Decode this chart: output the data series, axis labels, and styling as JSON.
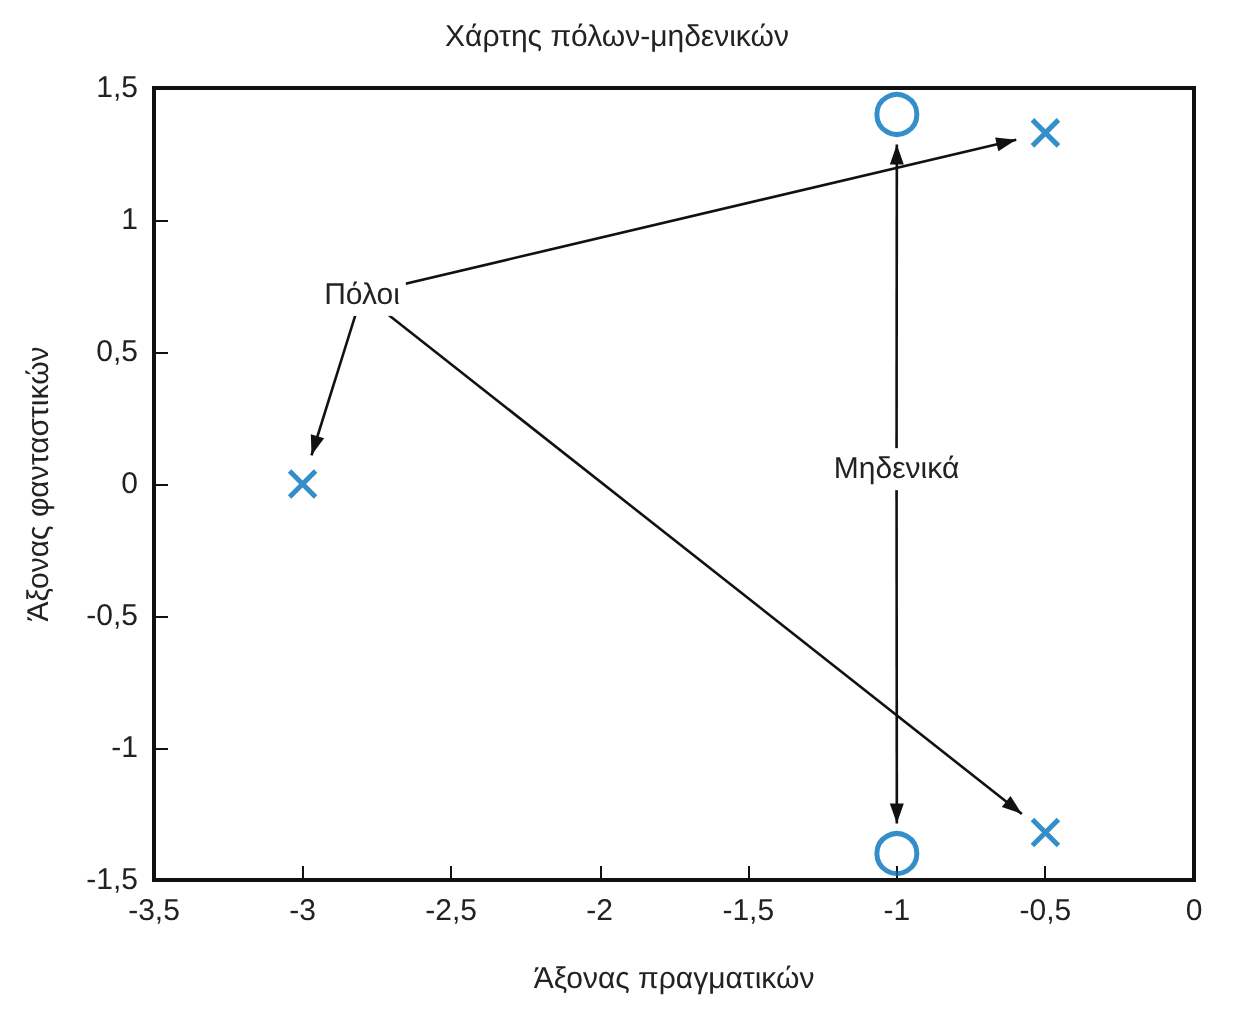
{
  "chart_data": {
    "type": "scatter",
    "title": "Χάρτης πόλων-μηδενικών",
    "xlabel": "Άξονας πραγματικών",
    "ylabel": "Άξονας φανταστικών",
    "xlim": [
      -3.5,
      0
    ],
    "ylim": [
      -1.5,
      1.5
    ],
    "xticks": [
      {
        "value": -3.5,
        "label": "-3,5"
      },
      -3,
      {
        "value": -2.5,
        "label": "-2,5"
      },
      -2,
      {
        "value": -1.5,
        "label": "-1,5"
      },
      -1,
      {
        "value": -0.5,
        "label": "-0,5"
      },
      0
    ],
    "yticks": [
      {
        "value": -1.5,
        "label": "-1,5"
      },
      -1,
      {
        "value": -0.5,
        "label": "-0,5"
      },
      0,
      {
        "value": 0.5,
        "label": "0,5"
      },
      1,
      {
        "value": 1.5,
        "label": "1,5"
      }
    ],
    "series": [
      {
        "color": "#0072bd",
        "marker": "cross",
        "x": [
          -3,
          -0.5,
          -0.5
        ],
        "values": [
          0,
          1.33,
          -1.32
        ]
      },
      {
        "color": "#0072bd",
        "marker": "circle",
        "x": [
          -1,
          -1
        ],
        "values": [
          1.4,
          -1.4
        ]
      }
    ],
    "annotations": [
      "Πόλοι",
      "Μηδενικά"
    ]
  }
}
